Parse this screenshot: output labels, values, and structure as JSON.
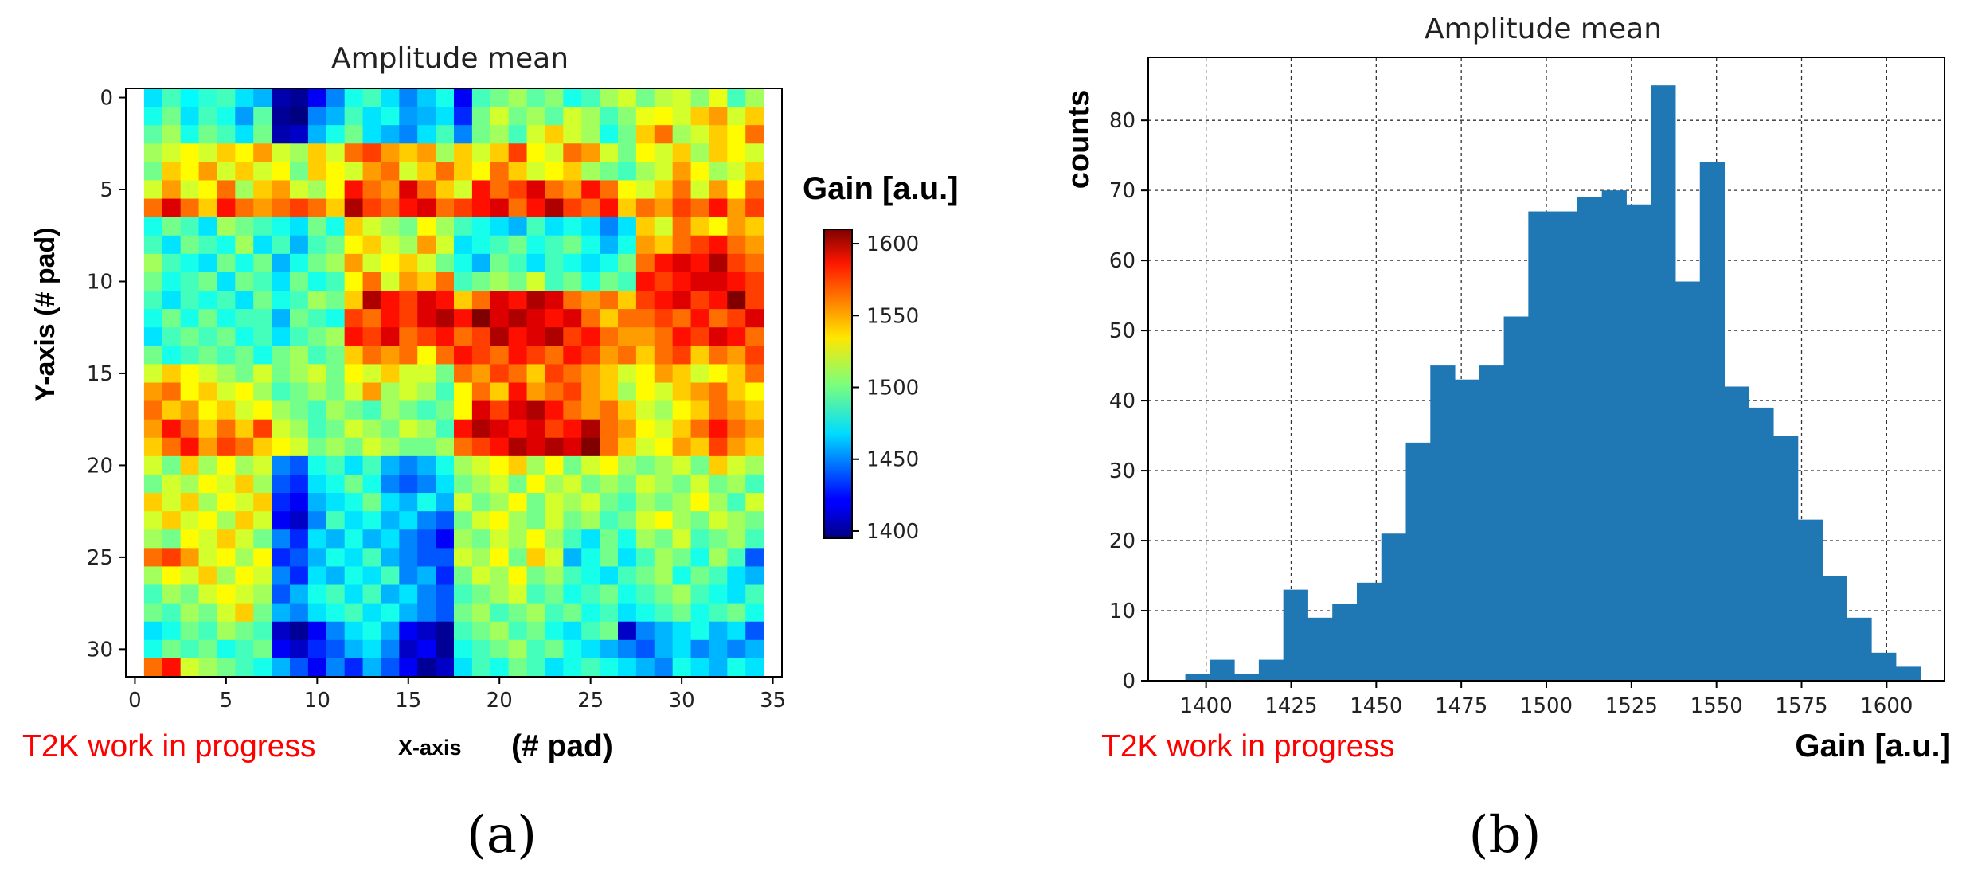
{
  "chart_data": [
    {
      "type": "heatmap",
      "panel_label": "(a)",
      "title": "Amplitude mean",
      "xlabel_small": "X-axis",
      "xlabel_big": "(# pad)",
      "ylabel": "Y-axis  (# pad)",
      "watermark": "T2K work in progress",
      "colorbar_title": "Gain [a.u.]",
      "colorbar_range": [
        1395,
        1610
      ],
      "colorbar_ticks": [
        1400,
        1450,
        1500,
        1550,
        1600
      ],
      "x_ticks": [
        0,
        5,
        10,
        15,
        20,
        25,
        30,
        35
      ],
      "y_ticks": [
        0,
        5,
        10,
        15,
        20,
        25,
        30
      ],
      "xlim": [
        -0.5,
        35.5
      ],
      "ylim": [
        -0.5,
        31.5
      ],
      "grid": [
        [
          1470,
          1490,
          1475,
          1485,
          1490,
          1470,
          1460,
          1405,
          1400,
          1420,
          1450,
          1480,
          1490,
          1470,
          1450,
          1465,
          1480,
          1420,
          1490,
          1500,
          1510,
          1495,
          1505,
          1480,
          1490,
          1510,
          1520,
          1500,
          1515,
          1520,
          1505,
          1525,
          1490,
          1510
        ],
        [
          1480,
          1500,
          1470,
          1490,
          1480,
          1455,
          1495,
          1400,
          1395,
          1450,
          1460,
          1490,
          1470,
          1480,
          1455,
          1460,
          1470,
          1430,
          1500,
          1520,
          1500,
          1510,
          1495,
          1520,
          1510,
          1490,
          1505,
          1525,
          1530,
          1520,
          1540,
          1550,
          1520,
          1540
        ],
        [
          1495,
          1510,
          1480,
          1500,
          1490,
          1470,
          1500,
          1405,
          1410,
          1460,
          1480,
          1500,
          1470,
          1460,
          1450,
          1470,
          1490,
          1450,
          1500,
          1510,
          1490,
          1520,
          1540,
          1520,
          1510,
          1480,
          1500,
          1540,
          1560,
          1510,
          1520,
          1540,
          1530,
          1560
        ],
        [
          1510,
          1520,
          1530,
          1520,
          1540,
          1530,
          1550,
          1520,
          1510,
          1540,
          1520,
          1560,
          1570,
          1550,
          1540,
          1550,
          1510,
          1540,
          1520,
          1540,
          1570,
          1530,
          1520,
          1560,
          1550,
          1520,
          1500,
          1530,
          1520,
          1540,
          1510,
          1540,
          1530,
          1520
        ],
        [
          1500,
          1540,
          1530,
          1550,
          1520,
          1540,
          1520,
          1530,
          1500,
          1540,
          1530,
          1520,
          1550,
          1560,
          1520,
          1540,
          1560,
          1540,
          1530,
          1560,
          1540,
          1520,
          1530,
          1540,
          1510,
          1500,
          1490,
          1510,
          1520,
          1550,
          1530,
          1510,
          1520,
          1540
        ],
        [
          1520,
          1550,
          1520,
          1530,
          1560,
          1510,
          1540,
          1550,
          1520,
          1510,
          1530,
          1580,
          1560,
          1550,
          1590,
          1560,
          1540,
          1520,
          1580,
          1560,
          1570,
          1590,
          1560,
          1550,
          1580,
          1560,
          1530,
          1520,
          1540,
          1560,
          1520,
          1550,
          1530,
          1560
        ],
        [
          1560,
          1590,
          1560,
          1540,
          1580,
          1560,
          1550,
          1560,
          1570,
          1560,
          1540,
          1600,
          1570,
          1560,
          1580,
          1590,
          1560,
          1570,
          1580,
          1590,
          1560,
          1580,
          1600,
          1570,
          1560,
          1580,
          1540,
          1560,
          1550,
          1570,
          1560,
          1580,
          1550,
          1570
        ],
        [
          1480,
          1500,
          1490,
          1470,
          1510,
          1500,
          1490,
          1480,
          1470,
          1500,
          1480,
          1540,
          1520,
          1510,
          1500,
          1530,
          1510,
          1490,
          1480,
          1470,
          1460,
          1490,
          1470,
          1480,
          1470,
          1450,
          1470,
          1540,
          1520,
          1560,
          1540,
          1530,
          1550,
          1540
        ],
        [
          1490,
          1470,
          1500,
          1490,
          1480,
          1510,
          1470,
          1490,
          1460,
          1490,
          1500,
          1530,
          1540,
          1520,
          1510,
          1550,
          1520,
          1470,
          1480,
          1490,
          1500,
          1480,
          1490,
          1500,
          1480,
          1460,
          1480,
          1550,
          1540,
          1560,
          1570,
          1580,
          1560,
          1550
        ],
        [
          1510,
          1490,
          1480,
          1470,
          1500,
          1480,
          1500,
          1460,
          1480,
          1500,
          1510,
          1550,
          1520,
          1530,
          1540,
          1520,
          1500,
          1480,
          1460,
          1500,
          1490,
          1470,
          1490,
          1480,
          1470,
          1480,
          1500,
          1560,
          1580,
          1590,
          1580,
          1600,
          1570,
          1560
        ],
        [
          1500,
          1480,
          1490,
          1500,
          1470,
          1500,
          1490,
          1470,
          1500,
          1480,
          1490,
          1530,
          1560,
          1520,
          1550,
          1540,
          1560,
          1490,
          1500,
          1510,
          1500,
          1520,
          1490,
          1500,
          1480,
          1500,
          1490,
          1580,
          1570,
          1580,
          1590,
          1590,
          1580,
          1570
        ],
        [
          1490,
          1470,
          1490,
          1480,
          1490,
          1470,
          1500,
          1480,
          1490,
          1510,
          1500,
          1540,
          1600,
          1580,
          1570,
          1590,
          1580,
          1540,
          1560,
          1590,
          1580,
          1600,
          1590,
          1560,
          1550,
          1560,
          1540,
          1570,
          1580,
          1590,
          1570,
          1580,
          1610,
          1570
        ],
        [
          1480,
          1500,
          1480,
          1500,
          1480,
          1490,
          1490,
          1460,
          1500,
          1490,
          1480,
          1570,
          1560,
          1580,
          1570,
          1590,
          1600,
          1580,
          1610,
          1590,
          1600,
          1590,
          1580,
          1590,
          1560,
          1540,
          1560,
          1560,
          1570,
          1560,
          1580,
          1560,
          1570,
          1590
        ],
        [
          1470,
          1490,
          1500,
          1490,
          1500,
          1480,
          1490,
          1470,
          1490,
          1500,
          1510,
          1580,
          1570,
          1590,
          1560,
          1570,
          1580,
          1560,
          1570,
          1600,
          1580,
          1590,
          1600,
          1570,
          1580,
          1560,
          1550,
          1550,
          1560,
          1580,
          1570,
          1590,
          1580,
          1560
        ],
        [
          1500,
          1480,
          1490,
          1500,
          1490,
          1500,
          1480,
          1500,
          1510,
          1490,
          1500,
          1540,
          1560,
          1550,
          1560,
          1530,
          1560,
          1580,
          1570,
          1560,
          1580,
          1570,
          1560,
          1580,
          1570,
          1550,
          1560,
          1540,
          1560,
          1570,
          1540,
          1560,
          1550,
          1570
        ],
        [
          1520,
          1540,
          1530,
          1520,
          1510,
          1500,
          1520,
          1500,
          1510,
          1520,
          1500,
          1530,
          1520,
          1540,
          1520,
          1520,
          1500,
          1560,
          1550,
          1570,
          1560,
          1540,
          1570,
          1560,
          1550,
          1540,
          1520,
          1530,
          1550,
          1540,
          1520,
          1530,
          1540,
          1560
        ],
        [
          1550,
          1560,
          1530,
          1540,
          1520,
          1530,
          1510,
          1490,
          1500,
          1510,
          1500,
          1520,
          1550,
          1510,
          1520,
          1510,
          1490,
          1530,
          1560,
          1540,
          1580,
          1550,
          1560,
          1570,
          1550,
          1540,
          1510,
          1530,
          1520,
          1540,
          1550,
          1560,
          1540,
          1530
        ],
        [
          1560,
          1540,
          1550,
          1530,
          1540,
          1520,
          1530,
          1510,
          1500,
          1490,
          1510,
          1500,
          1490,
          1510,
          1500,
          1490,
          1500,
          1530,
          1590,
          1570,
          1590,
          1600,
          1580,
          1560,
          1550,
          1560,
          1540,
          1520,
          1510,
          1530,
          1540,
          1560,
          1550,
          1540
        ],
        [
          1550,
          1580,
          1560,
          1540,
          1560,
          1540,
          1570,
          1520,
          1510,
          1490,
          1500,
          1520,
          1510,
          1500,
          1520,
          1510,
          1490,
          1580,
          1600,
          1590,
          1580,
          1590,
          1570,
          1580,
          1600,
          1560,
          1550,
          1530,
          1520,
          1540,
          1560,
          1580,
          1560,
          1550
        ],
        [
          1540,
          1560,
          1580,
          1550,
          1570,
          1560,
          1540,
          1530,
          1520,
          1500,
          1510,
          1500,
          1520,
          1510,
          1500,
          1500,
          1510,
          1560,
          1570,
          1580,
          1600,
          1590,
          1600,
          1590,
          1610,
          1560,
          1540,
          1520,
          1530,
          1550,
          1540,
          1570,
          1550,
          1540
        ],
        [
          1520,
          1500,
          1540,
          1510,
          1530,
          1510,
          1520,
          1450,
          1440,
          1480,
          1490,
          1470,
          1490,
          1460,
          1450,
          1460,
          1480,
          1510,
          1520,
          1530,
          1540,
          1510,
          1530,
          1500,
          1520,
          1530,
          1510,
          1500,
          1510,
          1520,
          1500,
          1540,
          1520,
          1510
        ],
        [
          1500,
          1520,
          1510,
          1530,
          1520,
          1540,
          1510,
          1440,
          1430,
          1470,
          1480,
          1500,
          1480,
          1450,
          1440,
          1450,
          1470,
          1500,
          1510,
          1520,
          1500,
          1530,
          1510,
          1520,
          1500,
          1510,
          1500,
          1520,
          1510,
          1500,
          1520,
          1500,
          1510,
          1490
        ],
        [
          1540,
          1520,
          1540,
          1510,
          1530,
          1520,
          1540,
          1430,
          1420,
          1460,
          1470,
          1480,
          1500,
          1470,
          1460,
          1480,
          1460,
          1520,
          1500,
          1510,
          1530,
          1500,
          1520,
          1510,
          1520,
          1500,
          1490,
          1510,
          1500,
          1510,
          1530,
          1510,
          1490,
          1520
        ],
        [
          1520,
          1540,
          1520,
          1530,
          1510,
          1540,
          1520,
          1420,
          1410,
          1450,
          1490,
          1470,
          1480,
          1460,
          1470,
          1450,
          1440,
          1500,
          1520,
          1530,
          1510,
          1500,
          1520,
          1500,
          1510,
          1490,
          1500,
          1520,
          1530,
          1510,
          1500,
          1520,
          1510,
          1500
        ],
        [
          1510,
          1500,
          1530,
          1520,
          1540,
          1520,
          1500,
          1450,
          1430,
          1470,
          1460,
          1480,
          1460,
          1470,
          1450,
          1440,
          1420,
          1510,
          1500,
          1520,
          1510,
          1530,
          1510,
          1490,
          1470,
          1500,
          1480,
          1510,
          1500,
          1520,
          1490,
          1500,
          1510,
          1490
        ],
        [
          1560,
          1570,
          1550,
          1520,
          1530,
          1510,
          1530,
          1430,
          1440,
          1460,
          1480,
          1470,
          1490,
          1460,
          1450,
          1440,
          1440,
          1520,
          1510,
          1530,
          1500,
          1540,
          1520,
          1460,
          1480,
          1500,
          1470,
          1490,
          1510,
          1500,
          1480,
          1510,
          1490,
          1440
        ],
        [
          1510,
          1530,
          1520,
          1540,
          1510,
          1530,
          1520,
          1450,
          1430,
          1470,
          1460,
          1480,
          1470,
          1490,
          1450,
          1460,
          1430,
          1500,
          1520,
          1510,
          1530,
          1500,
          1510,
          1490,
          1480,
          1470,
          1490,
          1500,
          1510,
          1480,
          1500,
          1490,
          1470,
          1460
        ],
        [
          1490,
          1510,
          1500,
          1520,
          1530,
          1520,
          1510,
          1440,
          1460,
          1480,
          1490,
          1470,
          1490,
          1460,
          1470,
          1450,
          1440,
          1490,
          1500,
          1510,
          1520,
          1490,
          1500,
          1480,
          1490,
          1500,
          1480,
          1490,
          1500,
          1510,
          1490,
          1480,
          1470,
          1490
        ],
        [
          1500,
          1490,
          1510,
          1500,
          1520,
          1540,
          1500,
          1460,
          1450,
          1470,
          1480,
          1490,
          1470,
          1480,
          1460,
          1450,
          1440,
          1500,
          1510,
          1490,
          1500,
          1510,
          1490,
          1500,
          1480,
          1490,
          1470,
          1480,
          1490,
          1500,
          1480,
          1490,
          1500,
          1480
        ],
        [
          1470,
          1480,
          1500,
          1490,
          1510,
          1500,
          1490,
          1410,
          1400,
          1420,
          1450,
          1470,
          1480,
          1460,
          1420,
          1410,
          1400,
          1490,
          1500,
          1510,
          1490,
          1500,
          1480,
          1470,
          1490,
          1500,
          1410,
          1450,
          1460,
          1470,
          1480,
          1460,
          1470,
          1440
        ],
        [
          1480,
          1500,
          1490,
          1500,
          1480,
          1490,
          1500,
          1420,
          1410,
          1430,
          1440,
          1460,
          1470,
          1450,
          1410,
          1420,
          1400,
          1480,
          1490,
          1500,
          1510,
          1490,
          1500,
          1480,
          1470,
          1460,
          1450,
          1440,
          1460,
          1470,
          1450,
          1460,
          1450,
          1460
        ],
        [
          1560,
          1580,
          1520,
          1510,
          1500,
          1490,
          1480,
          1460,
          1440,
          1420,
          1450,
          1430,
          1460,
          1440,
          1420,
          1400,
          1410,
          1470,
          1490,
          1480,
          1500,
          1490,
          1470,
          1480,
          1490,
          1480,
          1470,
          1460,
          1450,
          1480,
          1470,
          1460,
          1480,
          1470
        ]
      ]
    },
    {
      "type": "bar",
      "subtype": "histogram",
      "panel_label": "(b)",
      "title": "Amplitude mean",
      "xlabel": "Gain [a.u.]",
      "ylabel": "counts",
      "watermark": "T2K work in progress",
      "bin_start": 1393.9,
      "bin_width": 7.2,
      "counts": [
        1,
        3,
        1,
        3,
        13,
        9,
        11,
        14,
        21,
        34,
        45,
        43,
        45,
        52,
        67,
        67,
        69,
        70,
        68,
        85,
        57,
        74,
        42,
        39,
        35,
        23,
        15,
        9,
        4,
        2
      ],
      "xlim": [
        1383,
        1617
      ],
      "ylim": [
        0,
        89
      ],
      "x_ticks": [
        1400,
        1425,
        1450,
        1475,
        1500,
        1525,
        1550,
        1575,
        1600
      ],
      "y_ticks": [
        0,
        10,
        20,
        30,
        40,
        50,
        60,
        70,
        80
      ],
      "bar_color": "#1f77b4",
      "grid": true
    }
  ]
}
